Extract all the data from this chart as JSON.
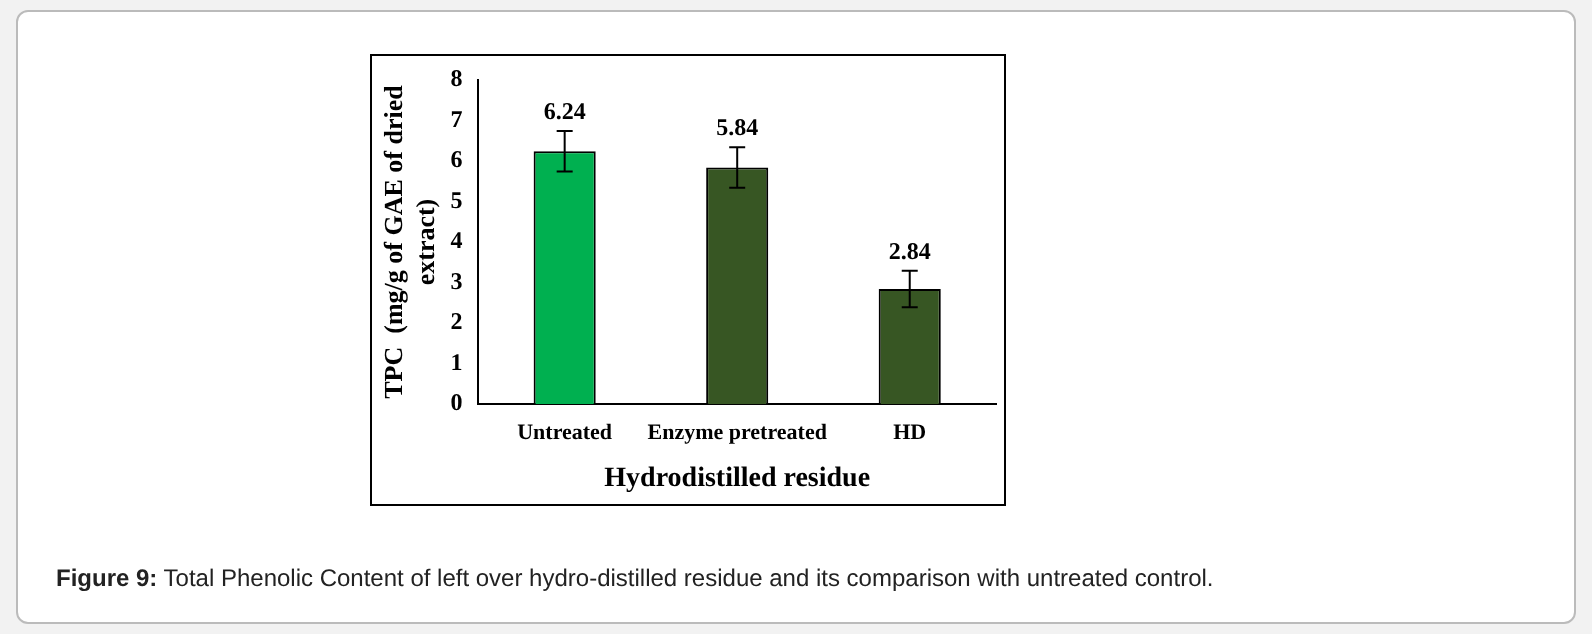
{
  "chart_data": {
    "type": "bar",
    "xlabel": "Hydrodistilled residue",
    "ylabel": "TPC  (mg/g of GAE of dried extract)",
    "categories": [
      "Untreated",
      "Enzyme pretreated",
      "HD"
    ],
    "values": [
      6.24,
      5.84,
      2.84
    ],
    "colors": [
      "#00b050",
      "#375623",
      "#375623"
    ],
    "errors": [
      0.5,
      0.5,
      0.45
    ],
    "data_labels": true,
    "ylim": [
      0,
      8
    ],
    "yticks": [
      0,
      1,
      2,
      3,
      4,
      5,
      6,
      7,
      8
    ],
    "grid": false,
    "legend": false,
    "annotations": [
      "Figure 9: Total Phenolic Content of left over hydro-distilled residue and its comparison with untreated control."
    ]
  }
}
